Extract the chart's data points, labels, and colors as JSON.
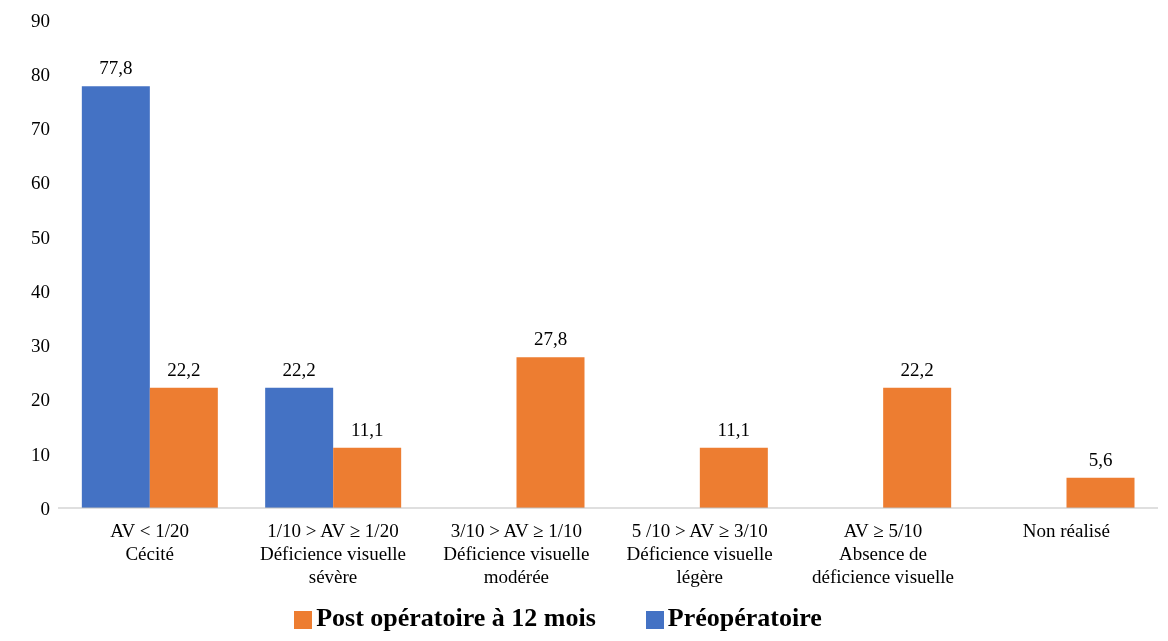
{
  "chart_data": {
    "type": "bar",
    "categories": [
      "AV < 1/20\nCécité",
      "1/10 > AV ≥ 1/20\nDéficience visuelle\nsévère",
      "3/10 > AV ≥ 1/10\nDéficience visuelle\nmodérée",
      "5 /10 > AV ≥ 3/10\nDéficience visuelle\nlégère",
      "AV ≥ 5/10\nAbsence de\ndéficience visuelle",
      "Non réalisé"
    ],
    "series": [
      {
        "name": "Préopératoire",
        "color": "#4472c4",
        "values": [
          77.8,
          22.2,
          null,
          null,
          null,
          null
        ],
        "value_labels": [
          "77,8",
          "22,2",
          null,
          null,
          null,
          null
        ]
      },
      {
        "name": "Post opératoire à 12 mois",
        "color": "#ed7d31",
        "values": [
          22.2,
          11.1,
          27.8,
          11.1,
          22.2,
          5.6
        ],
        "value_labels": [
          "22,2",
          "11,1",
          "27,8",
          "11,1",
          "22,2",
          "5,6"
        ]
      }
    ],
    "ylim": [
      0,
      90
    ],
    "yticks": [
      0,
      10,
      20,
      30,
      40,
      50,
      60,
      70,
      80,
      90
    ],
    "grid": false,
    "legend": "bottom"
  }
}
